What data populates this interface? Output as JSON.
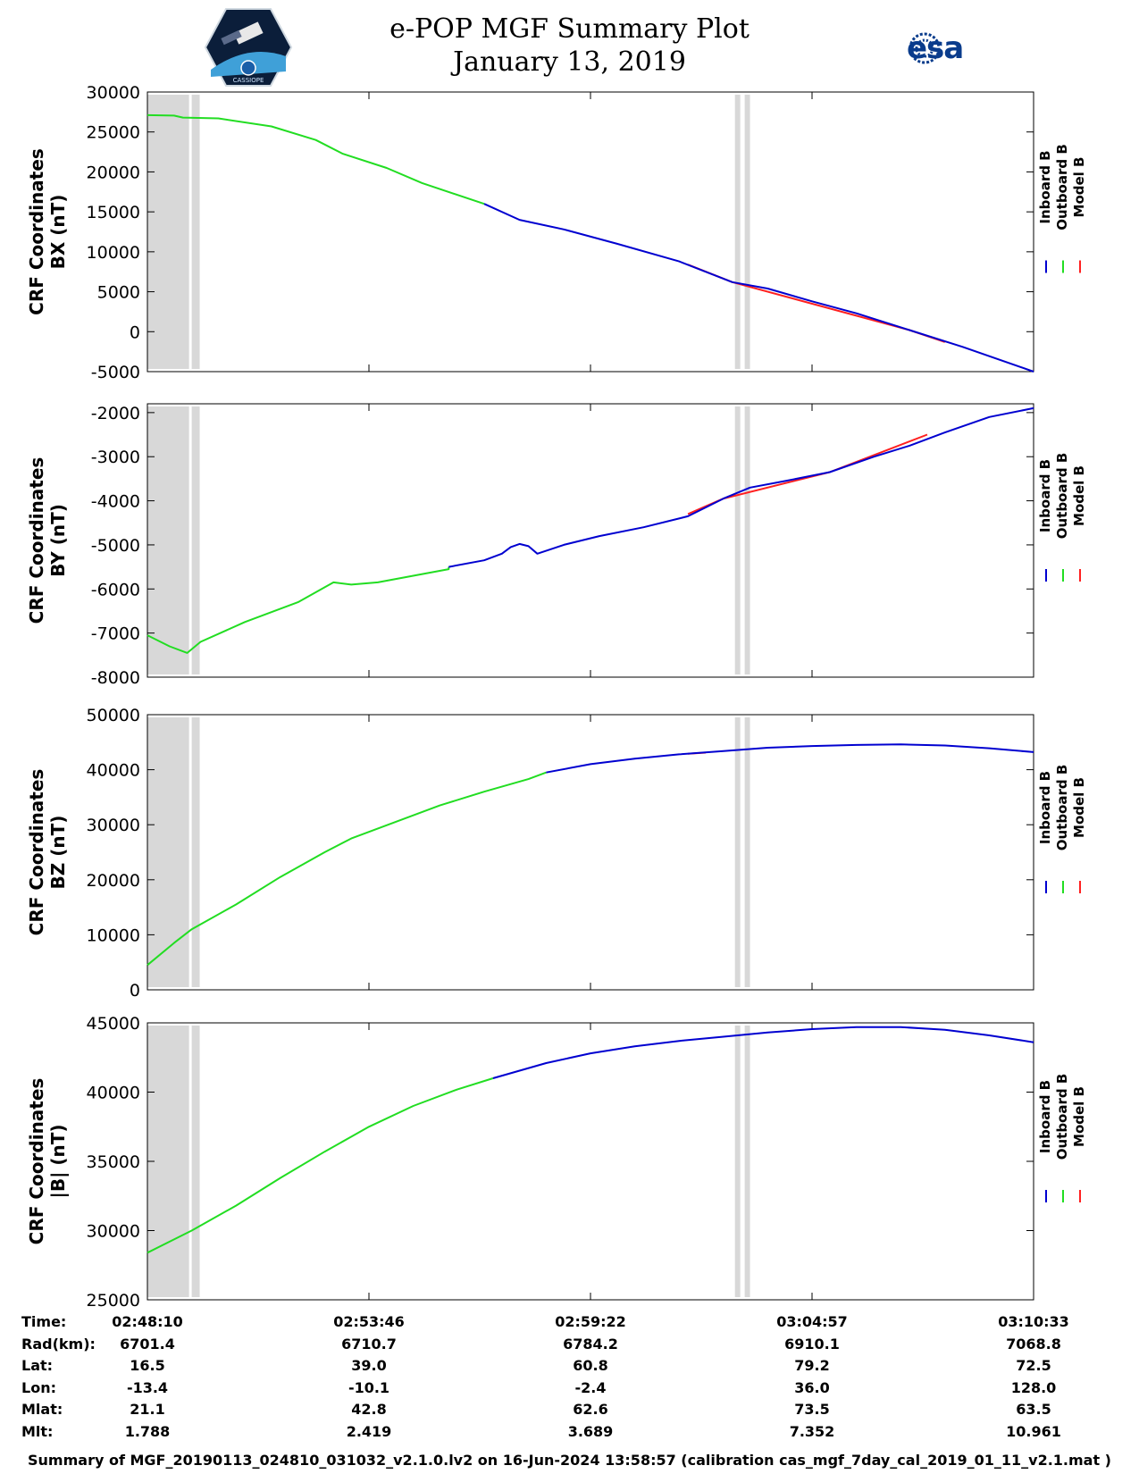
{
  "header": {
    "title_line1": "e-POP MGF Summary Plot",
    "title_line2": "January 13, 2019",
    "logo_left": "CASSIOPE",
    "logo_right": "esa"
  },
  "colors": {
    "inboard": "#0000d0",
    "outboard": "#22dd22",
    "model": "#ff2020",
    "gap": "#d8d8d8"
  },
  "chart_data": [
    {
      "type": "line",
      "ylabel_line1": "CRF Coordinates",
      "ylabel_line2": "BX (nT)",
      "ylim": [
        -5000,
        30000
      ],
      "yticks": [
        30000,
        25000,
        20000,
        15000,
        10000,
        5000,
        0,
        -5000
      ],
      "legend": [
        "Inboard B",
        "Outboard B",
        "Model B"
      ],
      "outboard": [
        [
          0.0,
          27100
        ],
        [
          0.03,
          27050
        ],
        [
          0.04,
          26800
        ],
        [
          0.08,
          26700
        ],
        [
          0.14,
          25700
        ],
        [
          0.19,
          24000
        ],
        [
          0.22,
          22300
        ],
        [
          0.27,
          20500
        ],
        [
          0.31,
          18600
        ],
        [
          0.38,
          16000
        ]
      ],
      "inboard": [
        [
          0.38,
          16000
        ],
        [
          0.42,
          14000
        ],
        [
          0.47,
          12800
        ],
        [
          0.53,
          11000
        ],
        [
          0.6,
          8800
        ],
        [
          0.66,
          6200
        ],
        [
          0.7,
          5400
        ],
        [
          0.75,
          3800
        ],
        [
          0.8,
          2300
        ],
        [
          0.86,
          200
        ],
        [
          0.92,
          -1900
        ],
        [
          1.0,
          -5000
        ]
      ],
      "model": [
        [
          0.61,
          8400
        ],
        [
          0.66,
          6200
        ],
        [
          0.86,
          200
        ],
        [
          0.9,
          -1300
        ]
      ]
    },
    {
      "type": "line",
      "ylabel_line1": "CRF Coordinates",
      "ylabel_line2": "BY (nT)",
      "ylim": [
        -8000,
        -1800
      ],
      "yticks": [
        -2000,
        -3000,
        -4000,
        -5000,
        -6000,
        -7000,
        -8000
      ],
      "legend": [
        "Inboard B",
        "Outboard B",
        "Model B"
      ],
      "outboard": [
        [
          0.0,
          -7050
        ],
        [
          0.025,
          -7300
        ],
        [
          0.045,
          -7450
        ],
        [
          0.06,
          -7200
        ],
        [
          0.11,
          -6750
        ],
        [
          0.17,
          -6300
        ],
        [
          0.21,
          -5850
        ],
        [
          0.23,
          -5900
        ],
        [
          0.26,
          -5850
        ],
        [
          0.3,
          -5700
        ],
        [
          0.34,
          -5550
        ],
        [
          0.34,
          -5500
        ]
      ],
      "inboard": [
        [
          0.34,
          -5500
        ],
        [
          0.38,
          -5350
        ],
        [
          0.4,
          -5200
        ],
        [
          0.41,
          -5050
        ],
        [
          0.42,
          -4980
        ],
        [
          0.43,
          -5030
        ],
        [
          0.44,
          -5200
        ],
        [
          0.47,
          -5000
        ],
        [
          0.51,
          -4800
        ],
        [
          0.56,
          -4600
        ],
        [
          0.61,
          -4350
        ],
        [
          0.63,
          -4150
        ],
        [
          0.65,
          -3950
        ],
        [
          0.68,
          -3700
        ],
        [
          0.72,
          -3550
        ],
        [
          0.77,
          -3350
        ],
        [
          0.82,
          -3000
        ],
        [
          0.86,
          -2750
        ],
        [
          0.9,
          -2450
        ],
        [
          0.95,
          -2100
        ],
        [
          1.0,
          -1900
        ]
      ],
      "model": [
        [
          0.61,
          -4300
        ],
        [
          0.65,
          -3950
        ],
        [
          0.77,
          -3350
        ],
        [
          0.88,
          -2500
        ]
      ]
    },
    {
      "type": "line",
      "ylabel_line1": "CRF Coordinates",
      "ylabel_line2": "BZ (nT)",
      "ylim": [
        0,
        50000
      ],
      "yticks": [
        50000,
        40000,
        30000,
        20000,
        10000,
        0
      ],
      "legend": [
        "Inboard B",
        "Outboard B",
        "Model B"
      ],
      "outboard": [
        [
          0.0,
          4500
        ],
        [
          0.03,
          8500
        ],
        [
          0.05,
          11000
        ],
        [
          0.1,
          15500
        ],
        [
          0.15,
          20500
        ],
        [
          0.2,
          25000
        ],
        [
          0.23,
          27500
        ],
        [
          0.28,
          30500
        ],
        [
          0.33,
          33500
        ],
        [
          0.38,
          36000
        ],
        [
          0.43,
          38300
        ],
        [
          0.45,
          39500
        ]
      ],
      "inboard": [
        [
          0.45,
          39500
        ],
        [
          0.5,
          41000
        ],
        [
          0.55,
          42000
        ],
        [
          0.6,
          42800
        ],
        [
          0.65,
          43400
        ],
        [
          0.7,
          44000
        ],
        [
          0.75,
          44300
        ],
        [
          0.8,
          44500
        ],
        [
          0.85,
          44600
        ],
        [
          0.9,
          44400
        ],
        [
          0.95,
          43900
        ],
        [
          1.0,
          43200
        ]
      ],
      "model": [
        [
          0.61,
          42900
        ],
        [
          0.63,
          43100
        ]
      ]
    },
    {
      "type": "line",
      "ylabel_line1": "CRF Coordinates",
      "ylabel_line2": "|B| (nT)",
      "ylim": [
        25000,
        45000
      ],
      "yticks": [
        45000,
        40000,
        35000,
        30000,
        25000
      ],
      "legend": [
        "Inboard B",
        "Outboard B",
        "Model B"
      ],
      "outboard": [
        [
          0.0,
          28400
        ],
        [
          0.05,
          30000
        ],
        [
          0.1,
          31800
        ],
        [
          0.15,
          33800
        ],
        [
          0.2,
          35700
        ],
        [
          0.25,
          37500
        ],
        [
          0.3,
          39000
        ],
        [
          0.35,
          40200
        ],
        [
          0.39,
          41000
        ]
      ],
      "inboard": [
        [
          0.39,
          41000
        ],
        [
          0.45,
          42100
        ],
        [
          0.5,
          42800
        ],
        [
          0.55,
          43300
        ],
        [
          0.6,
          43700
        ],
        [
          0.65,
          44000
        ],
        [
          0.7,
          44300
        ],
        [
          0.75,
          44550
        ],
        [
          0.8,
          44700
        ],
        [
          0.85,
          44700
        ],
        [
          0.9,
          44500
        ],
        [
          0.95,
          44100
        ],
        [
          1.0,
          43600
        ]
      ],
      "model": []
    }
  ],
  "time_table": {
    "rows": [
      {
        "label": "Time:",
        "values": [
          "02:48:10",
          "02:53:46",
          "02:59:22",
          "03:04:57",
          "03:10:33"
        ]
      },
      {
        "label": "Rad(km):",
        "values": [
          "6701.4",
          "6710.7",
          "6784.2",
          "6910.1",
          "7068.8"
        ]
      },
      {
        "label": "Lat:",
        "values": [
          "16.5",
          "39.0",
          "60.8",
          "79.2",
          "72.5"
        ]
      },
      {
        "label": "Lon:",
        "values": [
          "-13.4",
          "-10.1",
          "-2.4",
          "36.0",
          "128.0"
        ]
      },
      {
        "label": "Mlat:",
        "values": [
          "21.1",
          "42.8",
          "62.6",
          "73.5",
          "63.5"
        ]
      },
      {
        "label": "Mlt:",
        "values": [
          "1.788",
          "2.419",
          "3.689",
          "7.352",
          "10.961"
        ]
      }
    ]
  },
  "caption": "Summary of MGF_20190113_024810_031032_v2.1.0.lv2 on 16-Jun-2024 13:58:57 (calibration cas_mgf_7day_cal_2019_01_11_v2.1.mat )"
}
